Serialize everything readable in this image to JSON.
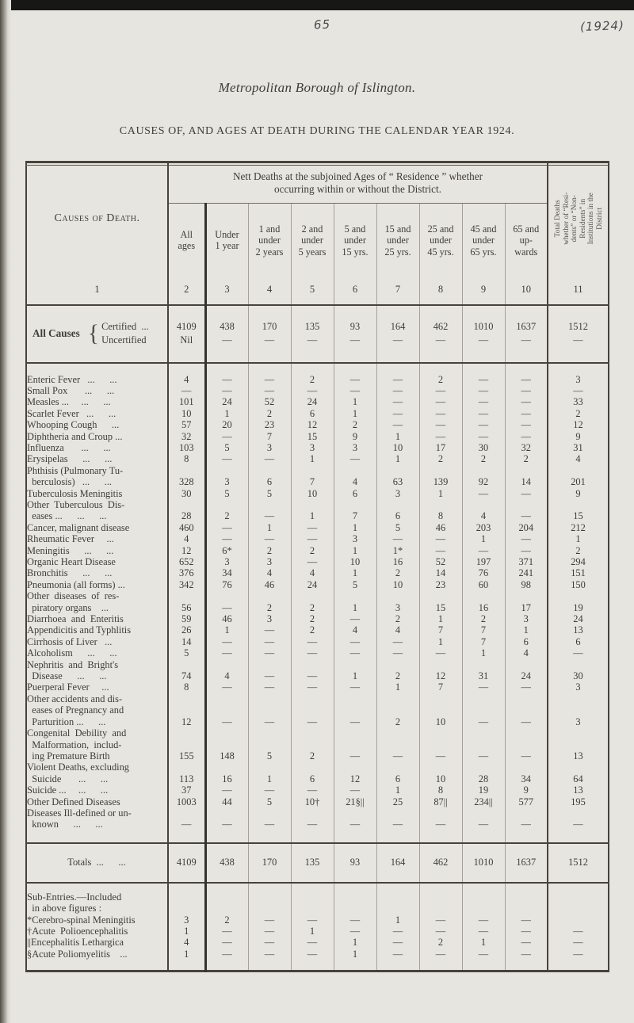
{
  "page": {
    "handwritten_page_number": "65",
    "handwritten_year": "(1924)",
    "borough_title": "Metropolitan Borough of Islington.",
    "table_caption": "CAUSES OF, AND AGES AT DEATH DURING THE CALENDAR YEAR 1924."
  },
  "table": {
    "causes_header": "Causes of Death.",
    "span_header": "Nett Deaths at the subjoined Ages of “ Residence ” whether\noccurring within or without the District.",
    "institutions_header": "Total Deaths\nwhether of “Resi-\ndents” or “Non-\nResidents” in\nInstitutions in the\nDistrict",
    "age_headers": [
      "All\nages",
      "Under\n1 year",
      "1 and\nunder\n2 years",
      "2 and\nunder\n5 years",
      "5 and\nunder\n15 yrs.",
      "15 and\nunder\n25 yrs.",
      "25 and\nunder\n45 yrs.",
      "45 and\nunder\n65 yrs.",
      "65 and\nup-\nwards"
    ],
    "column_numbers": [
      "1",
      "2",
      "3",
      "4",
      "5",
      "6",
      "7",
      "8",
      "9",
      "10",
      "11"
    ],
    "all_causes": {
      "label": "All Causes",
      "brace": "{",
      "certified_label": "Certified  ...",
      "uncertified_label": "Uncertified",
      "certified": [
        "4109",
        "438",
        "170",
        "135",
        "93",
        "164",
        "462",
        "1010",
        "1637",
        "1512"
      ],
      "uncertified": [
        "Nil",
        "—",
        "—",
        "—",
        "—",
        "—",
        "—",
        "—",
        "—",
        "—"
      ]
    },
    "rows": [
      {
        "label": "Enteric Fever   ...      ...",
        "values": [
          "4",
          "—",
          "—",
          "2",
          "—",
          "—",
          "2",
          "—",
          "—",
          "3"
        ]
      },
      {
        "label": "Small Pox       ...      ...",
        "values": [
          "—",
          "—",
          "—",
          "—",
          "—",
          "—",
          "—",
          "—",
          "—",
          "—"
        ]
      },
      {
        "label": "Measles ...     ...      ...",
        "values": [
          "101",
          "24",
          "52",
          "24",
          "1",
          "—",
          "—",
          "—",
          "—",
          "33"
        ]
      },
      {
        "label": "Scarlet Fever   ...      ...",
        "values": [
          "10",
          "1",
          "2",
          "6",
          "1",
          "—",
          "—",
          "—",
          "—",
          "2"
        ]
      },
      {
        "label": "Whooping Cough      ...",
        "values": [
          "57",
          "20",
          "23",
          "12",
          "2",
          "—",
          "—",
          "—",
          "—",
          "12"
        ]
      },
      {
        "label": "Diphtheria and Croup ...",
        "values": [
          "32",
          "—",
          "7",
          "15",
          "9",
          "1",
          "—",
          "—",
          "—",
          "9"
        ]
      },
      {
        "label": "Influenza       ...      ...",
        "values": [
          "103",
          "5",
          "3",
          "3",
          "3",
          "10",
          "17",
          "30",
          "32",
          "31"
        ]
      },
      {
        "label": "Erysipelas      ...      ...",
        "values": [
          "8",
          "—",
          "—",
          "1",
          "—",
          "1",
          "2",
          "2",
          "2",
          "4"
        ]
      },
      {
        "label": "Phthisis (Pulmonary Tu-\n  berculosis)   ...      ...",
        "values": [
          "328",
          "3",
          "6",
          "7",
          "4",
          "63",
          "139",
          "92",
          "14",
          "201"
        ]
      },
      {
        "label": "Tuberculosis Meningitis",
        "values": [
          "30",
          "5",
          "5",
          "10",
          "6",
          "3",
          "1",
          "—",
          "—",
          "9"
        ]
      },
      {
        "label": "Other  Tuberculous  Dis-\n  eases ...      ...      ...",
        "values": [
          "28",
          "2",
          "—",
          "1",
          "7",
          "6",
          "8",
          "4",
          "—",
          "15"
        ]
      },
      {
        "label": "Cancer, malignant disease",
        "values": [
          "460",
          "—",
          "1",
          "—",
          "1",
          "5",
          "46",
          "203",
          "204",
          "212"
        ]
      },
      {
        "label": "Rheumatic Fever     ...",
        "values": [
          "4",
          "—",
          "—",
          "—",
          "3",
          "—",
          "—",
          "1",
          "—",
          "1"
        ]
      },
      {
        "label": "Meningitis      ...      ...",
        "values": [
          "12",
          "6*",
          "2",
          "2",
          "1",
          "1*",
          "—",
          "—",
          "—",
          "2"
        ]
      },
      {
        "label": "Organic Heart Disease",
        "values": [
          "652",
          "3",
          "3",
          "—",
          "10",
          "16",
          "52",
          "197",
          "371",
          "294"
        ]
      },
      {
        "label": "Bronchitis      ...      ...",
        "values": [
          "376",
          "34",
          "4",
          "4",
          "1",
          "2",
          "14",
          "76",
          "241",
          "151"
        ]
      },
      {
        "label": "Pneumonia (all forms) ...",
        "values": [
          "342",
          "76",
          "46",
          "24",
          "5",
          "10",
          "23",
          "60",
          "98",
          "150"
        ]
      },
      {
        "label": "Other  diseases  of  res-\n  piratory organs    ...",
        "values": [
          "56",
          "—",
          "2",
          "2",
          "1",
          "3",
          "15",
          "16",
          "17",
          "19"
        ]
      },
      {
        "label": "Diarrhoea  and  Enteritis",
        "values": [
          "59",
          "46",
          "3",
          "2",
          "—",
          "2",
          "1",
          "2",
          "3",
          "24"
        ]
      },
      {
        "label": "Appendicitis and Typhlitis",
        "values": [
          "26",
          "1",
          "—",
          "2",
          "4",
          "4",
          "7",
          "7",
          "1",
          "13"
        ]
      },
      {
        "label": "Cirrhosis of Liver   ...",
        "values": [
          "14",
          "—",
          "—",
          "—",
          "—",
          "—",
          "1",
          "7",
          "6",
          "6"
        ]
      },
      {
        "label": "Alcoholism      ...      ...",
        "values": [
          "5",
          "—",
          "—",
          "—",
          "—",
          "—",
          "—",
          "1",
          "4",
          "—"
        ]
      },
      {
        "label": "Nephritis  and  Bright's\n  Disease      ...      ...",
        "values": [
          "74",
          "4",
          "—",
          "—",
          "1",
          "2",
          "12",
          "31",
          "24",
          "30"
        ]
      },
      {
        "label": "Puerperal Fever     ...",
        "values": [
          "8",
          "—",
          "—",
          "—",
          "—",
          "1",
          "7",
          "—",
          "—",
          "3"
        ]
      },
      {
        "label": "Other accidents and dis-\n  eases of Pregnancy and\n  Parturition ...      ...",
        "values": [
          "12",
          "—",
          "—",
          "—",
          "—",
          "2",
          "10",
          "—",
          "—",
          "3"
        ]
      },
      {
        "label": "Congenital  Debility  and\n  Malformation,  includ-\n  ing Premature Birth",
        "values": [
          "155",
          "148",
          "5",
          "2",
          "—",
          "—",
          "—",
          "—",
          "—",
          "13"
        ]
      },
      {
        "label": "Violent Deaths, excluding\n  Suicide       ...      ...",
        "values": [
          "113",
          "16",
          "1",
          "6",
          "12",
          "6",
          "10",
          "28",
          "34",
          "64"
        ]
      },
      {
        "label": "Suicide ...     ...      ...",
        "values": [
          "37",
          "—",
          "—",
          "—",
          "—",
          "1",
          "8",
          "19",
          "9",
          "13"
        ]
      },
      {
        "label": "Other Defined Diseases",
        "values": [
          "1003",
          "44",
          "5",
          "10†",
          "21§||",
          "25",
          "87||",
          "234||",
          "577",
          "195"
        ]
      },
      {
        "label": "Diseases Ill-defined or un-\n  known      ...      ...",
        "values": [
          "—",
          "—",
          "—",
          "—",
          "—",
          "—",
          "—",
          "—",
          "—",
          "—"
        ]
      }
    ],
    "totals": {
      "label": "Totals  ...      ...",
      "values": [
        "4109",
        "438",
        "170",
        "135",
        "93",
        "164",
        "462",
        "1010",
        "1637",
        "1512"
      ]
    },
    "sub_entries": {
      "heading": "Sub-Entries.—Included\n  in above figures :",
      "rows": [
        {
          "label": "*Cerebro-spinal Meningitis",
          "values": [
            "3",
            "2",
            "—",
            "—",
            "—",
            "1",
            "—",
            "—",
            "—",
            ""
          ]
        },
        {
          "label": "†Acute  Polioencephalitis",
          "values": [
            "1",
            "—",
            "—",
            "1",
            "—",
            "—",
            "—",
            "—",
            "—",
            "—"
          ]
        },
        {
          "label": "||Encephalitis Lethargica",
          "values": [
            "4",
            "—",
            "—",
            "—",
            "1",
            "—",
            "2",
            "1",
            "—",
            "—"
          ]
        },
        {
          "label": "§Acute Poliomyelitis    ...",
          "values": [
            "1",
            "—",
            "—",
            "—",
            "1",
            "—",
            "—",
            "—",
            "—",
            "—"
          ]
        }
      ]
    }
  }
}
